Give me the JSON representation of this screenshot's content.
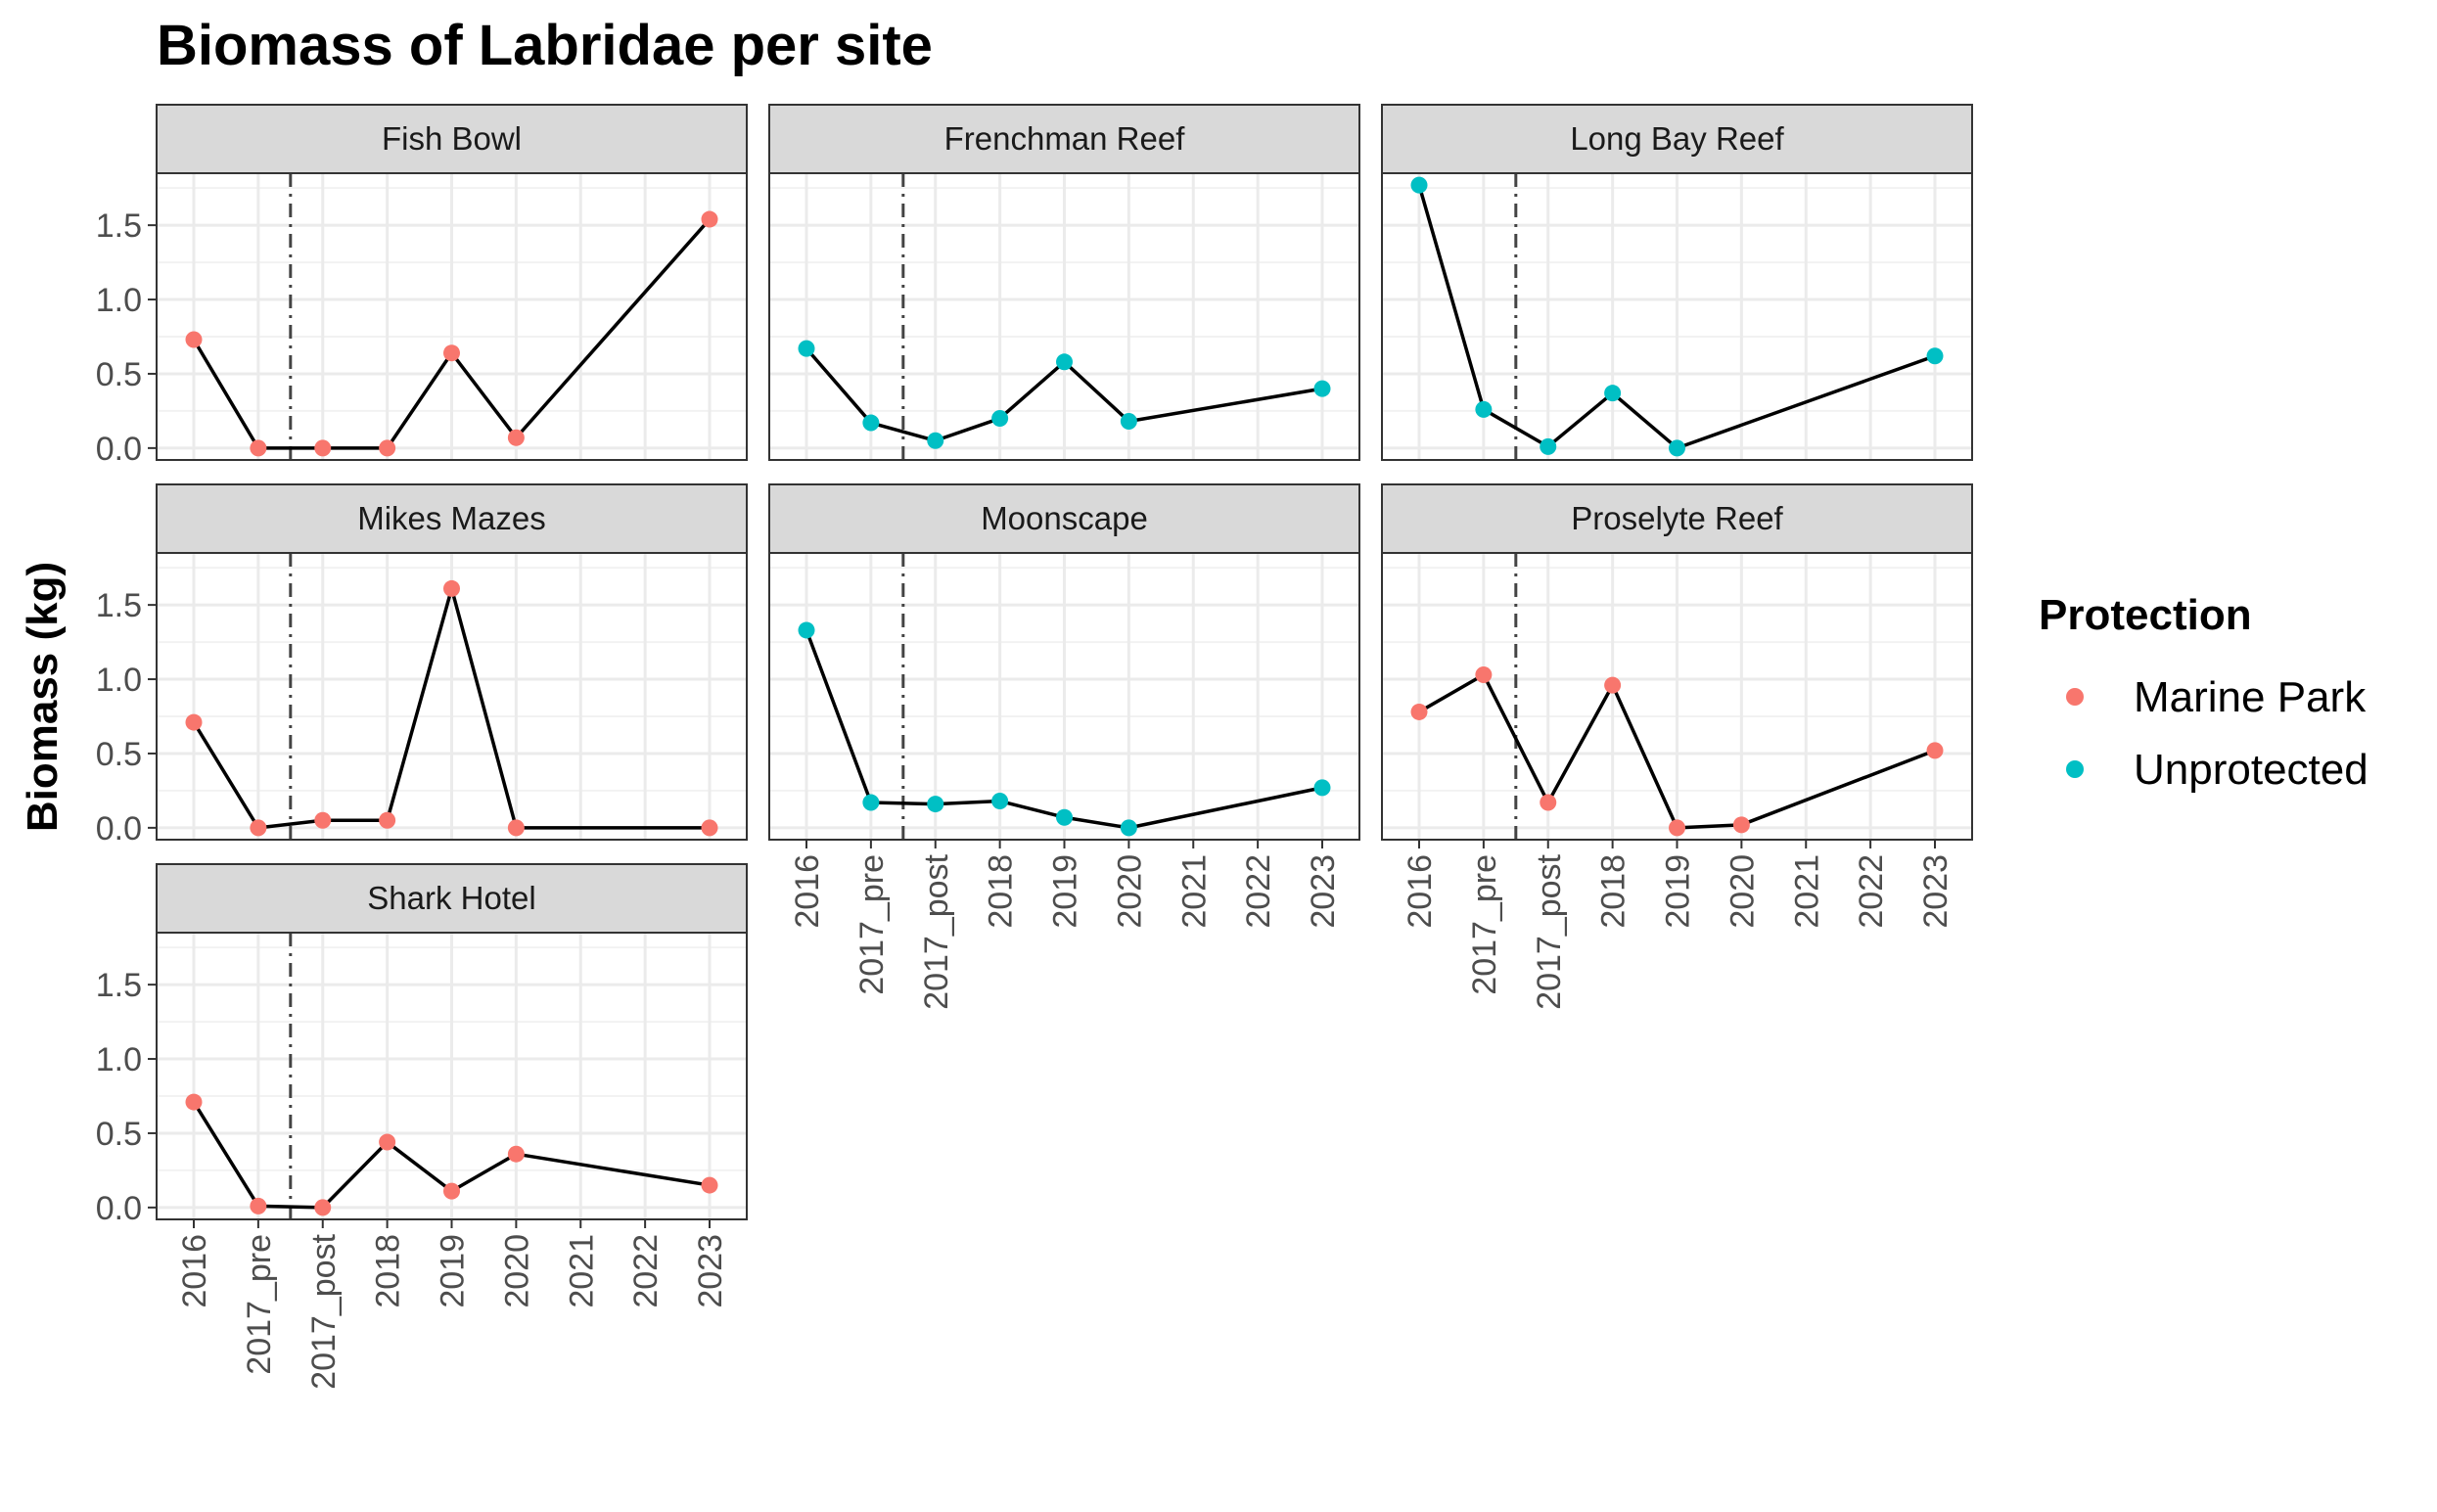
{
  "chart_data": {
    "type": "line",
    "title": "Biomass of Labridae per site",
    "xlabel": "",
    "ylabel": "Biomass (kg)",
    "categories": [
      "2016",
      "2017_pre",
      "2017_post",
      "2018",
      "2019",
      "2020",
      "2021",
      "2022",
      "2023"
    ],
    "y_ticks": [
      "0.0",
      "0.5",
      "1.0",
      "1.5"
    ],
    "ylim": [
      -0.08,
      1.85
    ],
    "event_marker": {
      "between": [
        "2017_pre",
        "2017_post"
      ],
      "style": "dash-dot",
      "color": "#444444"
    },
    "grid": true,
    "legend": {
      "title": "Protection",
      "position": "right",
      "entries": [
        {
          "name": "Marine Park",
          "color": "#F8766D"
        },
        {
          "name": "Unprotected",
          "color": "#00BFC4"
        }
      ]
    },
    "panels": [
      {
        "site": "Fish Bowl",
        "protection": "Marine Park",
        "points": [
          {
            "x": "2016",
            "y": 0.73
          },
          {
            "x": "2017_pre",
            "y": 0.0
          },
          {
            "x": "2017_post",
            "y": 0.0
          },
          {
            "x": "2018",
            "y": 0.0
          },
          {
            "x": "2019",
            "y": 0.64
          },
          {
            "x": "2020",
            "y": 0.07
          },
          {
            "x": "2023",
            "y": 1.54
          }
        ]
      },
      {
        "site": "Frenchman Reef",
        "protection": "Unprotected",
        "points": [
          {
            "x": "2016",
            "y": 0.67
          },
          {
            "x": "2017_pre",
            "y": 0.17
          },
          {
            "x": "2017_post",
            "y": 0.05
          },
          {
            "x": "2018",
            "y": 0.2
          },
          {
            "x": "2019",
            "y": 0.58
          },
          {
            "x": "2020",
            "y": 0.18
          },
          {
            "x": "2023",
            "y": 0.4
          }
        ]
      },
      {
        "site": "Long Bay Reef",
        "protection": "Unprotected",
        "points": [
          {
            "x": "2016",
            "y": 1.77
          },
          {
            "x": "2017_pre",
            "y": 0.26
          },
          {
            "x": "2017_post",
            "y": 0.01
          },
          {
            "x": "2018",
            "y": 0.37
          },
          {
            "x": "2019",
            "y": 0.0
          },
          {
            "x": "2023",
            "y": 0.62
          }
        ]
      },
      {
        "site": "Mikes Mazes",
        "protection": "Marine Park",
        "points": [
          {
            "x": "2016",
            "y": 0.71
          },
          {
            "x": "2017_pre",
            "y": 0.0
          },
          {
            "x": "2017_post",
            "y": 0.05
          },
          {
            "x": "2018",
            "y": 0.05
          },
          {
            "x": "2019",
            "y": 1.61
          },
          {
            "x": "2020",
            "y": 0.0
          },
          {
            "x": "2023",
            "y": 0.0
          }
        ]
      },
      {
        "site": "Moonscape",
        "protection": "Unprotected",
        "points": [
          {
            "x": "2016",
            "y": 1.33
          },
          {
            "x": "2017_pre",
            "y": 0.17
          },
          {
            "x": "2017_post",
            "y": 0.16
          },
          {
            "x": "2018",
            "y": 0.18
          },
          {
            "x": "2019",
            "y": 0.07
          },
          {
            "x": "2020",
            "y": 0.0
          },
          {
            "x": "2023",
            "y": 0.27
          }
        ]
      },
      {
        "site": "Proselyte Reef",
        "protection": "Marine Park",
        "points": [
          {
            "x": "2016",
            "y": 0.78
          },
          {
            "x": "2017_pre",
            "y": 1.03
          },
          {
            "x": "2017_post",
            "y": 0.17
          },
          {
            "x": "2018",
            "y": 0.96
          },
          {
            "x": "2019",
            "y": 0.0
          },
          {
            "x": "2020",
            "y": 0.02
          },
          {
            "x": "2023",
            "y": 0.52
          }
        ]
      },
      {
        "site": "Shark Hotel",
        "protection": "Marine Park",
        "points": [
          {
            "x": "2016",
            "y": 0.71
          },
          {
            "x": "2017_pre",
            "y": 0.01
          },
          {
            "x": "2017_post",
            "y": 0.0
          },
          {
            "x": "2018",
            "y": 0.44
          },
          {
            "x": "2019",
            "y": 0.11
          },
          {
            "x": "2020",
            "y": 0.36
          },
          {
            "x": "2023",
            "y": 0.15
          }
        ]
      }
    ]
  }
}
